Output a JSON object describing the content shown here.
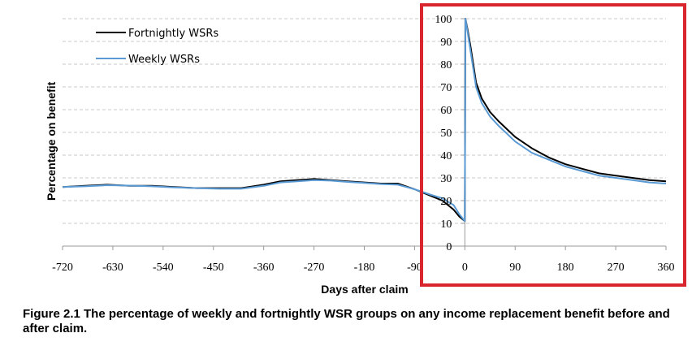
{
  "caption": "Figure 2.1 The percentage of weekly and fortnightly WSR groups on any income replacement benefit before and after claim.",
  "colors": {
    "fortnightly": "#000000",
    "weekly": "#5b9bd5",
    "highlight": "#d9262e",
    "grid": "#c8c8c8"
  },
  "chart_data": {
    "type": "line",
    "xlabel": "Days after claim",
    "ylabel": "Percentage on benefit",
    "xlim": [
      -720,
      360
    ],
    "ylim": [
      0,
      100
    ],
    "x_ticks": [
      -720,
      -630,
      -540,
      -450,
      -360,
      -270,
      -180,
      -90,
      0,
      90,
      180,
      270,
      360
    ],
    "y_ticks": [
      0,
      10,
      20,
      30,
      40,
      50,
      60,
      70,
      80,
      90,
      100
    ],
    "grid": "horizontal dashed",
    "legend_position": "top-left",
    "series": [
      {
        "name": "Fortnightly WSRs",
        "x": [
          -720,
          -680,
          -640,
          -600,
          -560,
          -520,
          -480,
          -440,
          -400,
          -360,
          -330,
          -300,
          -270,
          -240,
          -210,
          -180,
          -150,
          -120,
          -90,
          -60,
          -40,
          -20,
          -10,
          0,
          1,
          5,
          10,
          15,
          20,
          30,
          45,
          60,
          90,
          120,
          150,
          180,
          210,
          240,
          270,
          300,
          330,
          360
        ],
        "y": [
          26,
          26.5,
          27,
          26.5,
          26.5,
          26,
          25.5,
          25.5,
          25.5,
          27,
          28.5,
          29,
          29.5,
          29,
          28.5,
          28,
          27.5,
          27.5,
          25,
          22,
          20,
          16,
          13,
          11,
          100,
          95,
          88,
          80,
          72,
          65,
          59,
          55,
          48,
          43,
          39,
          36,
          34,
          32,
          31,
          30,
          29,
          28.5
        ]
      },
      {
        "name": "Weekly WSRs",
        "x": [
          -720,
          -680,
          -640,
          -600,
          -560,
          -520,
          -480,
          -440,
          -400,
          -360,
          -330,
          -300,
          -270,
          -240,
          -210,
          -180,
          -150,
          -120,
          -90,
          -60,
          -40,
          -20,
          -10,
          0,
          1,
          5,
          10,
          15,
          20,
          30,
          45,
          60,
          90,
          120,
          150,
          180,
          210,
          240,
          270,
          300,
          330,
          360
        ],
        "y": [
          26,
          26.3,
          26.8,
          26.6,
          26.3,
          25.8,
          25.5,
          25.2,
          25.2,
          26.5,
          28,
          28.5,
          29,
          28.8,
          28.2,
          27.8,
          27.3,
          27,
          25,
          22.5,
          21,
          18,
          14,
          11,
          100,
          94,
          86,
          78,
          70,
          63,
          57,
          53,
          46,
          41,
          38,
          35,
          33,
          31,
          30,
          29,
          28,
          27.5
        ]
      }
    ]
  }
}
